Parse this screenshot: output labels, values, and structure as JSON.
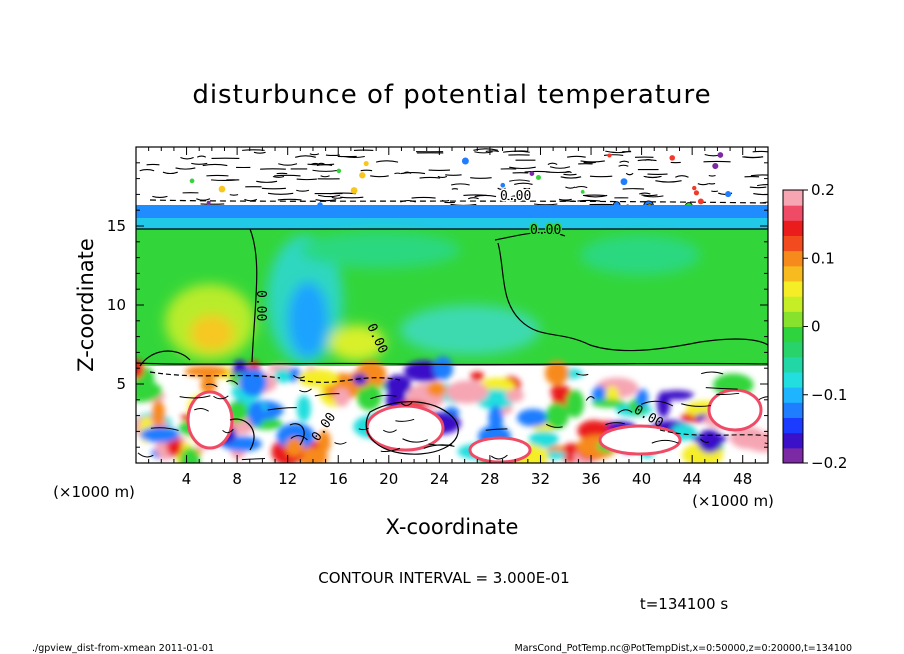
{
  "chart_data": {
    "type": "heatmap",
    "title": "disturbunce of potential temperature",
    "xlabel": "X-coordinate",
    "ylabel": "Z-coordinate",
    "x_unit": "(×1000 m)",
    "z_unit": "(×1000 m)",
    "xlim": [
      0,
      50
    ],
    "zlim": [
      0,
      20
    ],
    "x_ticks": [
      "4",
      "8",
      "12",
      "16",
      "20",
      "24",
      "28",
      "32",
      "36",
      "40",
      "44",
      "48"
    ],
    "z_ticks": [
      "5",
      "10",
      "15"
    ],
    "colorbar": {
      "range": [
        -0.2,
        0.2
      ],
      "ticks": [
        "0.2",
        "0.1",
        "0",
        "−0.1",
        "−0.2"
      ],
      "colors": [
        "#7b2aa3",
        "#3a10c8",
        "#1b3cff",
        "#1f7dff",
        "#1fb4ff",
        "#22dede",
        "#22d7a6",
        "#29d36b",
        "#2ed33e",
        "#86e22c",
        "#c6ee27",
        "#f5ee27",
        "#f7bb20",
        "#f78a1c",
        "#f24b1e",
        "#ea1c1c",
        "#f04b66",
        "#f6a5b3"
      ]
    },
    "contour_labels": [
      "0.00",
      "0.00",
      "0.00",
      "0.00",
      "0.00",
      "0.00"
    ],
    "grid": false,
    "legend": "colorbar right"
  },
  "contour_interval": "CONTOUR INTERVAL = 3.000E-01",
  "time_label": "t=134100 s",
  "footer_left": "./gpview_dist-from-xmean  2011-01-01",
  "footer_right": "MarsCond_PotTemp.nc@PotTempDist,x=0:50000,z=0:20000,t=134100"
}
